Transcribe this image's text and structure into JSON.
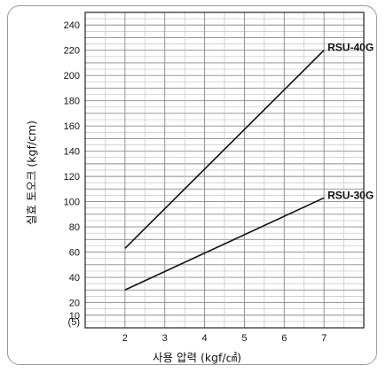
{
  "chart_data": {
    "type": "line",
    "xlabel": "사용 압력 (kgf/㎠)",
    "ylabel": "실효 토오크 (kgf/cm)",
    "x_ticks": [
      "2",
      "3",
      "4",
      "5",
      "6",
      "7"
    ],
    "y_ticks": [
      "(5)",
      "10",
      "20",
      "40",
      "60",
      "80",
      "100",
      "120",
      "140",
      "160",
      "180",
      "200",
      "220",
      "240"
    ],
    "xlim": [
      1,
      8
    ],
    "ylim": [
      0,
      250
    ],
    "grid": true,
    "series": [
      {
        "name": "RSU-40G",
        "x": [
          2,
          7
        ],
        "y": [
          63,
          220
        ]
      },
      {
        "name": "RSU-30G",
        "x": [
          2,
          7
        ],
        "y": [
          30,
          103
        ]
      }
    ]
  }
}
